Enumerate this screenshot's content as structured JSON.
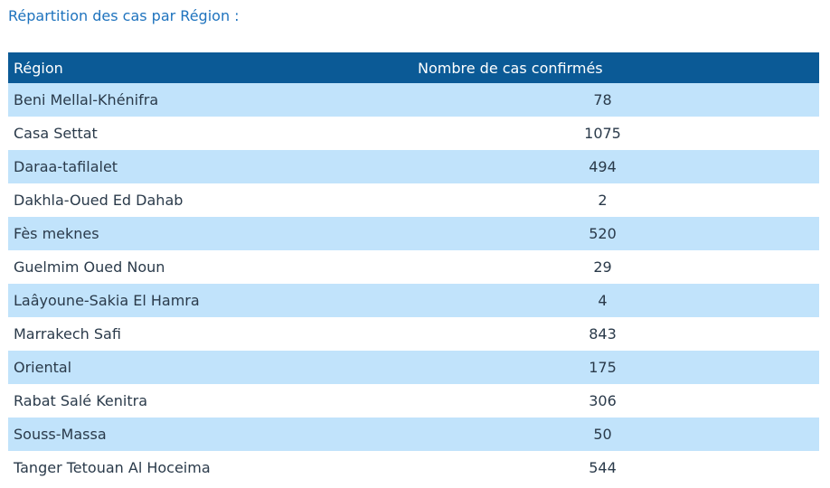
{
  "section_title": "Répartition des cas par Région :",
  "table": {
    "headers": {
      "region": "Région",
      "count": "Nombre de cas confirmés"
    },
    "rows": [
      {
        "region": "Beni Mellal-Khénifra",
        "count": "78"
      },
      {
        "region": "Casa Settat",
        "count": "1075"
      },
      {
        "region": "Daraa-tafilalet",
        "count": "494"
      },
      {
        "region": "Dakhla-Oued Ed Dahab",
        "count": "2"
      },
      {
        "region": "Fès meknes",
        "count": "520"
      },
      {
        "region": "Guelmim Oued Noun",
        "count": "29"
      },
      {
        "region": "Laâyoune-Sakia El Hamra",
        "count": "4"
      },
      {
        "region": "Marrakech Safi",
        "count": "843"
      },
      {
        "region": "Oriental",
        "count": "175"
      },
      {
        "region": "Rabat Salé Kenitra",
        "count": "306"
      },
      {
        "region": "Souss-Massa",
        "count": "50"
      },
      {
        "region": "Tanger Tetouan Al Hoceima",
        "count": "544"
      }
    ]
  },
  "colors": {
    "title": "#1e73be",
    "header_bg": "#0b5a96",
    "header_text": "#ffffff",
    "row_stripe": "#c1e3fb",
    "row_plain": "#ffffff",
    "cell_text": "#2a3a4a"
  }
}
